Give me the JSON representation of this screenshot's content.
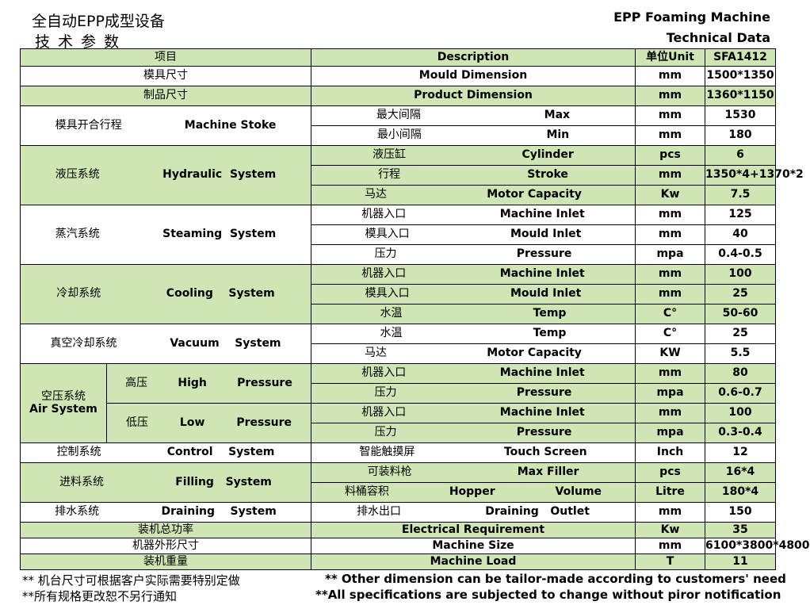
{
  "header": {
    "title_cn": "全自动EPP成型设备",
    "subtitle_cn": "技 术 参 数",
    "title_en": "EPP Foaming Machine",
    "subtitle_en": "Technical  Data"
  },
  "table": {
    "head": {
      "item": "项目",
      "description": "Description",
      "unit": "单位Unit",
      "model": "SFA1412"
    },
    "mould": {
      "cn": "模具尺寸",
      "en": "Mould Dimension",
      "unit": "mm",
      "value": "1500*1350"
    },
    "product": {
      "cn": "制品尺寸",
      "en": "Product Dimension",
      "unit": "mm",
      "value": "1360*1150"
    },
    "stroke": {
      "cn": "模具开合行程",
      "en": "Machine Stoke",
      "rows": [
        {
          "cn": "最大间隔",
          "en": "Max",
          "unit": "mm",
          "value": "1530"
        },
        {
          "cn": "最小间隔",
          "en": "Min",
          "unit": "mm",
          "value": "180"
        }
      ]
    },
    "hydraulic": {
      "cn": "液压系统",
      "en1": "Hydraulic",
      "en2": "System",
      "rows": [
        {
          "cn": "液压缸",
          "en": "Cylinder",
          "unit": "pcs",
          "value": "6"
        },
        {
          "cn": "行程",
          "en": "Stroke",
          "unit": "mm",
          "value": "1350*4+1370*2"
        },
        {
          "cn": "马达",
          "en": "Motor Capacity",
          "unit": "Kw",
          "value": "7.5"
        }
      ]
    },
    "steam": {
      "cn": "蒸汽系统",
      "en1": "Steaming",
      "en2": "System",
      "rows": [
        {
          "cn": "机器入口",
          "en": "Machine Inlet",
          "unit": "mm",
          "value": "125"
        },
        {
          "cn": "模具入口",
          "en": "Mould Inlet",
          "unit": "mm",
          "value": "40"
        },
        {
          "cn": "压力",
          "en": "Pressure",
          "unit": "mpa",
          "value": "0.4-0.5"
        }
      ]
    },
    "cooling": {
      "cn": "冷却系统",
      "en1": "Cooling",
      "en2": "System",
      "rows": [
        {
          "cn": "机器入口",
          "en": "Machine Inlet",
          "unit": "mm",
          "value": "100"
        },
        {
          "cn": "模具入口",
          "en": "Mould Inlet",
          "unit": "mm",
          "value": "25"
        },
        {
          "cn": "水温",
          "en": "Temp",
          "unit": "C°",
          "value": "50-60"
        }
      ]
    },
    "vacuum": {
      "cn": "真空冷却系统",
      "en1": "Vacuum",
      "en2": "System",
      "rows": [
        {
          "cn": "水温",
          "en": "Temp",
          "unit": "C°",
          "value": "25"
        },
        {
          "cn": "马达",
          "en": "Motor Capacity",
          "unit": "KW",
          "value": "5.5"
        }
      ]
    },
    "air": {
      "cn": "空压系统",
      "en": "Air System",
      "high": {
        "cn": "高压",
        "en1": "High",
        "en2": "Pressure",
        "rows": [
          {
            "cn": "机器入口",
            "en": "Machine Inlet",
            "unit": "mm",
            "value": "80"
          },
          {
            "cn": "压力",
            "en": "Pressure",
            "unit": "mpa",
            "value": "0.6-0.7"
          }
        ]
      },
      "low": {
        "cn": "低压",
        "en1": "Low",
        "en2": "Pressure",
        "rows": [
          {
            "cn": "机器入口",
            "en": "Machine Inlet",
            "unit": "mm",
            "value": "100"
          },
          {
            "cn": "压力",
            "en": "Pressure",
            "unit": "mpa",
            "value": "0.3-0.4"
          }
        ]
      }
    },
    "control": {
      "cn": "控制系统",
      "en1": "Control",
      "en2": "System",
      "row": {
        "cn": "智能触摸屏",
        "en": "Touch Screen",
        "unit": "Inch",
        "value": "12"
      }
    },
    "filling": {
      "cn": "进料系统",
      "en1": "Filling",
      "en2": "System",
      "rows": [
        {
          "cn": "可装料枪",
          "en": "Max Filler",
          "unit": "pcs",
          "value": "16*4"
        },
        {
          "cn": "料桶容积",
          "en1": "Hopper",
          "en2": "Volume",
          "unit": "Litre",
          "value": "180*4"
        }
      ]
    },
    "drain": {
      "cn": "排水系统",
      "en1": "Draining",
      "en2": "System",
      "row": {
        "cn": "排水出口",
        "en1": "Draining",
        "en2": "Outlet",
        "unit": "mm",
        "value": "150"
      }
    },
    "power": {
      "cn": "装机总功率",
      "en": "Electrical Requirement",
      "unit": "Kw",
      "value": "35"
    },
    "size": {
      "cn": "机器外形尺寸",
      "en": "Machine Size",
      "unit": "mm",
      "value": "6100*3800*4800"
    },
    "load": {
      "cn": "装机重量",
      "en": "Machine Load",
      "unit": "T",
      "value": "11"
    }
  },
  "notes": {
    "cn1": "** 机台尺寸可根据客户实际需要特别定做",
    "cn2": "**所有规格更改恕不另行通知",
    "en1": "** Other dimension can be tailor-made according to customers' need",
    "en2": "**All specifications are subjected to change without piror notification"
  }
}
